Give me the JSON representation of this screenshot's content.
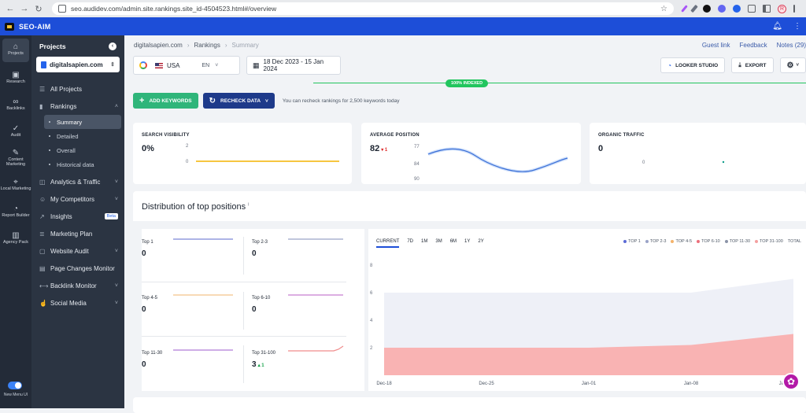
{
  "browser": {
    "url": "seo.audidev.com/admin.site.rankings.site_id-4504523.html#/overview",
    "profile_initial": "R"
  },
  "app": {
    "brand": "SEO-AIM"
  },
  "rail": {
    "items": [
      {
        "label": "Projects"
      },
      {
        "label": "Research"
      },
      {
        "label": "Backlinks"
      },
      {
        "label": "Audit"
      },
      {
        "label": "Content Marketing"
      },
      {
        "label": "Local Marketing"
      },
      {
        "label": "Report Builder"
      },
      {
        "label": "Agency Pack"
      }
    ],
    "toggle_label": "New Menu UI"
  },
  "sidebar": {
    "title": "Projects",
    "project": "digitalsapien.com",
    "all_projects": "All Projects",
    "rankings": "Rankings",
    "rankings_sub": [
      "Summary",
      "Detailed",
      "Overall",
      "Historical data"
    ],
    "items": [
      "Analytics & Traffic",
      "My Competitors",
      "Insights",
      "Marketing Plan",
      "Website Audit",
      "Page Changes Monitor",
      "Backlink Monitor",
      "Social Media"
    ],
    "beta": "Beta"
  },
  "header": {
    "breadcrumb": [
      "digitalsapien.com",
      "Rankings",
      "Summary"
    ],
    "links": [
      "Guest link",
      "Feedback",
      "Notes (29)"
    ]
  },
  "controls": {
    "country": "USA",
    "language": "EN",
    "date_range": "18 Dec 2023 - 15 Jan 2024",
    "looker": "LOOKER STUDIO",
    "export": "EXPORT",
    "indexed": "100% INDEXED",
    "add_keywords": "ADD KEYWORDS",
    "recheck": "RECHECK DATA",
    "recheck_hint": "You can recheck rankings for 2,500 keywords today"
  },
  "kpis": {
    "visibility": {
      "title": "SEARCH VISIBILITY",
      "value": "0%",
      "ticks": [
        "2",
        "0"
      ]
    },
    "position": {
      "title": "AVERAGE POSITION",
      "value": "82",
      "delta": "▾ 1",
      "ticks": [
        "77",
        "84",
        "90"
      ]
    },
    "traffic": {
      "title": "ORGANIC TRAFFIC",
      "value": "0",
      "ticks": [
        "0"
      ]
    }
  },
  "distribution": {
    "title": "Distribution of top positions",
    "title_mark": "i",
    "cells": [
      {
        "label": "Top 1",
        "value": "0",
        "delta": "",
        "color": "#7c86d6"
      },
      {
        "label": "Top 2-3",
        "value": "0",
        "delta": "",
        "color": "#9aa3c7"
      },
      {
        "label": "Top 4-5",
        "value": "0",
        "delta": "",
        "color": "#f4c48a"
      },
      {
        "label": "Top 6-10",
        "value": "0",
        "delta": "",
        "color": "#c77dd1"
      },
      {
        "label": "Top 11-30",
        "value": "0",
        "delta": "",
        "color": "#b07cd8"
      },
      {
        "label": "Top 31-100",
        "value": "3",
        "delta": "▴ 1",
        "color": "#f08c8c"
      }
    ],
    "tabs": [
      "CURRENT",
      "7D",
      "1M",
      "3M",
      "6M",
      "1Y",
      "2Y"
    ],
    "legend": [
      {
        "name": "TOP 1",
        "color": "#5b6bd6"
      },
      {
        "name": "TOP 2-3",
        "color": "#9aa3c7"
      },
      {
        "name": "TOP 4-5",
        "color": "#f4b36b"
      },
      {
        "name": "TOP 6-10",
        "color": "#ec6f7b"
      },
      {
        "name": "TOP 11-30",
        "color": "#8b93a7"
      },
      {
        "name": "TOP 31-100",
        "color": "#f4a0a0"
      },
      {
        "name": "TOTAL",
        "color": ""
      }
    ]
  },
  "chart_data": {
    "type": "area",
    "title": "Distribution of top positions",
    "x": [
      "Dec-18",
      "Dec-25",
      "Jan-01",
      "Jan-08",
      "Jan-15"
    ],
    "ylim": [
      0,
      8
    ],
    "yticks": [
      8,
      6,
      4,
      2
    ],
    "series": [
      {
        "name": "TOP 31-100",
        "values": [
          2,
          2,
          2,
          2.2,
          3
        ]
      },
      {
        "name": "TOTAL",
        "values": [
          6,
          6,
          6,
          6,
          7
        ]
      }
    ]
  }
}
